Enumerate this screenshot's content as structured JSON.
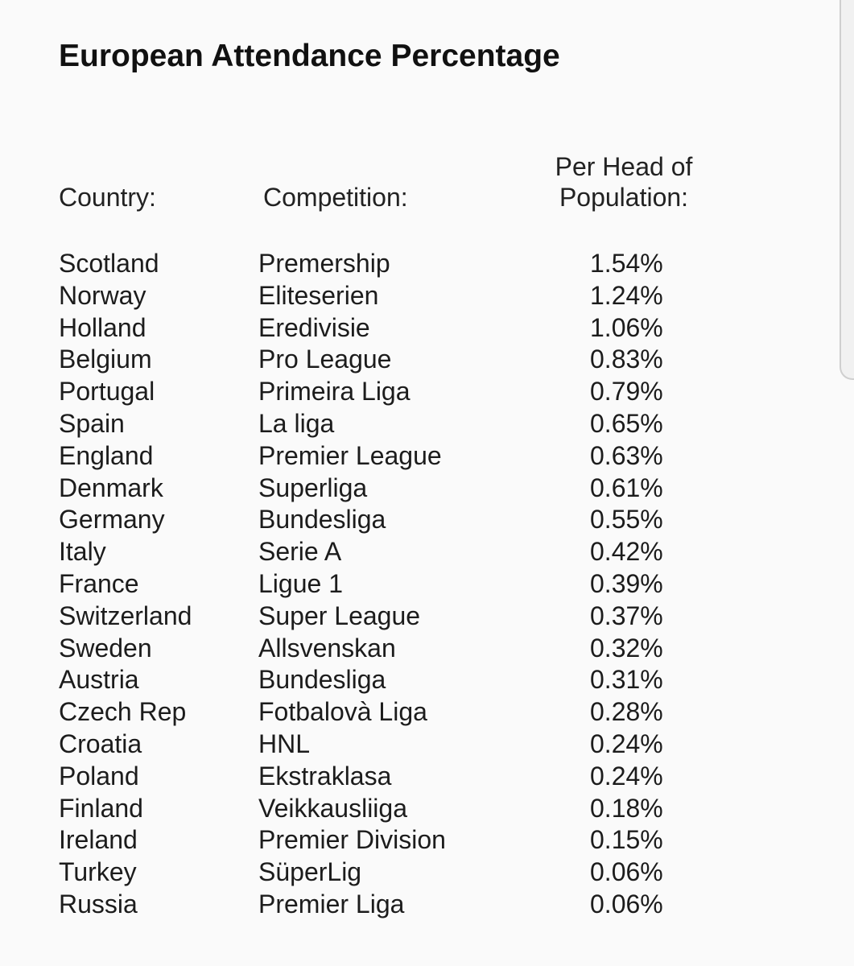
{
  "title": "European Attendance Percentage",
  "headers": {
    "country": "Country:",
    "competition": "Competition:",
    "per_head_line1": "Per Head of",
    "per_head_line2": "Population:"
  },
  "rows": [
    {
      "country": "Scotland",
      "competition": "Premership",
      "pct": "1.54%"
    },
    {
      "country": "Norway",
      "competition": "Eliteserien",
      "pct": "1.24%"
    },
    {
      "country": "Holland",
      "competition": "Eredivisie",
      "pct": "1.06%"
    },
    {
      "country": "Belgium",
      "competition": "Pro League",
      "pct": "0.83%"
    },
    {
      "country": "Portugal",
      "competition": "Primeira Liga",
      "pct": "0.79%"
    },
    {
      "country": "Spain",
      "competition": "La liga",
      "pct": "0.65%"
    },
    {
      "country": "England",
      "competition": "Premier League",
      "pct": "0.63%"
    },
    {
      "country": "Denmark",
      "competition": "Superliga",
      "pct": "0.61%"
    },
    {
      "country": "Germany",
      "competition": "Bundesliga",
      "pct": "0.55%"
    },
    {
      "country": "Italy",
      "competition": "Serie A",
      "pct": "0.42%"
    },
    {
      "country": "France",
      "competition": "Ligue 1",
      "pct": "0.39%"
    },
    {
      "country": "Switzerland",
      "competition": "Super League",
      "pct": "0.37%"
    },
    {
      "country": "Sweden",
      "competition": "Allsvenskan",
      "pct": "0.32%"
    },
    {
      "country": "Austria",
      "competition": "Bundesliga",
      "pct": "0.31%"
    },
    {
      "country": "Czech Rep",
      "competition": "Fotbalovà Liga",
      "pct": "0.28%"
    },
    {
      "country": "Croatia",
      "competition": "HNL",
      "pct": "0.24%"
    },
    {
      "country": "Poland",
      "competition": "Ekstraklasa",
      "pct": "0.24%"
    },
    {
      "country": "Finland",
      "competition": "Veikkausliiga",
      "pct": "0.18%"
    },
    {
      "country": "Ireland",
      "competition": "Premier Division",
      "pct": "0.15%"
    },
    {
      "country": "Turkey",
      "competition": "SüperLig",
      "pct": "0.06%"
    },
    {
      "country": "Russia",
      "competition": "Premier Liga",
      "pct": "0.06%"
    }
  ]
}
